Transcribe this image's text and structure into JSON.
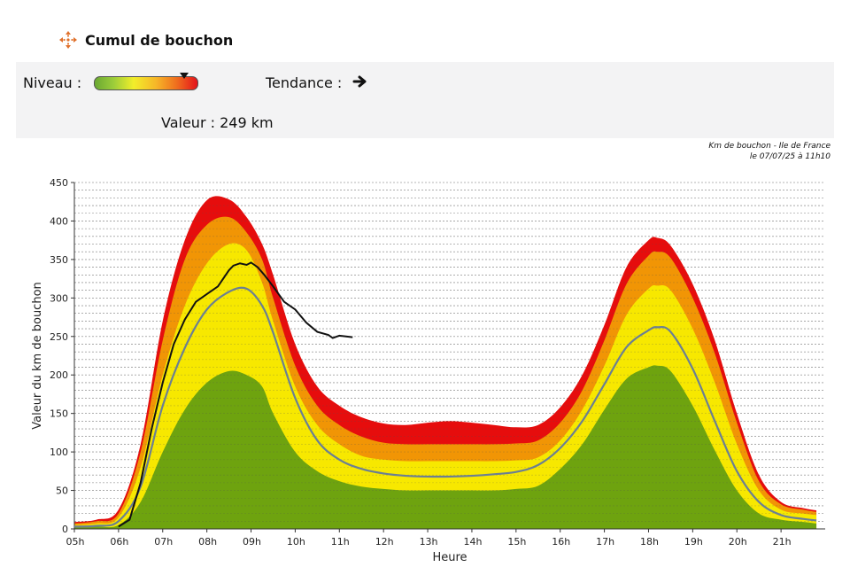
{
  "header": {
    "title": "Cumul de bouchon",
    "icon": "cross-arrows-icon"
  },
  "status": {
    "niveau_label": "Niveau :",
    "niveau_level": 0.88,
    "tendance_label": "Tendance :",
    "tendance_icon": "arrow-right-icon",
    "valeur_text": "Valeur : 249 km"
  },
  "source": {
    "line1": "Km de bouchon - Ile de France",
    "line2": "le 07/07/25 à 11h10"
  },
  "colors": {
    "green": "#6ea30f",
    "yellow": "#f7e800",
    "orange": "#f19505",
    "red": "#e60d0d",
    "median": "#6b7f93",
    "actual": "#111111"
  },
  "chart_data": {
    "type": "area",
    "xlabel": "Heure",
    "ylabel": "Valeur du km de bouchon",
    "xlim": [
      5,
      22
    ],
    "ylim": [
      0,
      450
    ],
    "y_ticks": [
      0,
      50,
      100,
      150,
      200,
      250,
      300,
      350,
      400,
      450
    ],
    "x_ticks": [
      "05h",
      "06h",
      "07h",
      "08h",
      "09h",
      "10h",
      "11h",
      "12h",
      "13h",
      "14h",
      "15h",
      "16h",
      "17h",
      "18h",
      "19h",
      "20h",
      "21h"
    ],
    "x": [
      5,
      5.5,
      6,
      6.5,
      7,
      7.5,
      8,
      8.5,
      8.9,
      9.25,
      9.5,
      10,
      10.5,
      11,
      11.5,
      12,
      12.5,
      13,
      13.5,
      14,
      14.5,
      15,
      15.5,
      16,
      16.5,
      17,
      17.5,
      18,
      18.2,
      18.5,
      19,
      19.5,
      20,
      20.5,
      21,
      21.5,
      21.8
    ],
    "series": [
      {
        "band": "red_top",
        "values": [
          9,
          12,
          25,
          110,
          270,
          375,
          427,
          428,
          405,
          370,
          330,
          240,
          185,
          160,
          145,
          137,
          135,
          138,
          140,
          138,
          135,
          132,
          135,
          158,
          200,
          265,
          340,
          375,
          378,
          368,
          318,
          245,
          150,
          70,
          35,
          27,
          24
        ]
      },
      {
        "band": "orange_top",
        "values": [
          7,
          10,
          20,
          100,
          245,
          350,
          395,
          405,
          385,
          350,
          300,
          212,
          160,
          135,
          120,
          112,
          110,
          110,
          110,
          110,
          110,
          111,
          115,
          138,
          180,
          245,
          318,
          355,
          360,
          352,
          300,
          228,
          138,
          62,
          32,
          25,
          22
        ]
      },
      {
        "band": "yellow_top",
        "values": [
          5,
          7,
          15,
          80,
          200,
          290,
          345,
          370,
          362,
          320,
          270,
          185,
          135,
          110,
          95,
          90,
          88,
          88,
          88,
          88,
          88,
          89,
          93,
          115,
          155,
          212,
          278,
          312,
          316,
          310,
          260,
          190,
          110,
          50,
          25,
          20,
          18
        ]
      },
      {
        "band": "green_top",
        "values": [
          2,
          3,
          5,
          35,
          100,
          155,
          190,
          205,
          200,
          185,
          150,
          100,
          75,
          62,
          55,
          52,
          50,
          50,
          50,
          50,
          50,
          52,
          56,
          78,
          110,
          155,
          195,
          210,
          212,
          205,
          160,
          102,
          50,
          20,
          12,
          9,
          7
        ]
      },
      {
        "name": "median",
        "band": "median",
        "values": [
          3,
          4,
          10,
          55,
          160,
          235,
          285,
          308,
          312,
          290,
          255,
          170,
          115,
          90,
          78,
          72,
          69,
          68,
          68,
          69,
          71,
          74,
          83,
          105,
          140,
          188,
          236,
          258,
          262,
          256,
          208,
          140,
          75,
          35,
          18,
          13,
          11
        ]
      }
    ],
    "actual_line": {
      "x": [
        6.0,
        6.25,
        6.5,
        6.75,
        7.0,
        7.25,
        7.5,
        7.75,
        8.0,
        8.25,
        8.5,
        8.6,
        8.75,
        8.9,
        9.0,
        9.15,
        9.3,
        9.5,
        9.75,
        10.0,
        10.25,
        10.5,
        10.75,
        10.85,
        11.0,
        11.15,
        11.3
      ],
      "values": [
        3,
        12,
        60,
        130,
        190,
        240,
        272,
        295,
        305,
        315,
        336,
        342,
        345,
        343,
        346,
        340,
        330,
        315,
        295,
        285,
        268,
        256,
        252,
        248,
        251,
        250,
        249
      ]
    },
    "grid": true
  }
}
